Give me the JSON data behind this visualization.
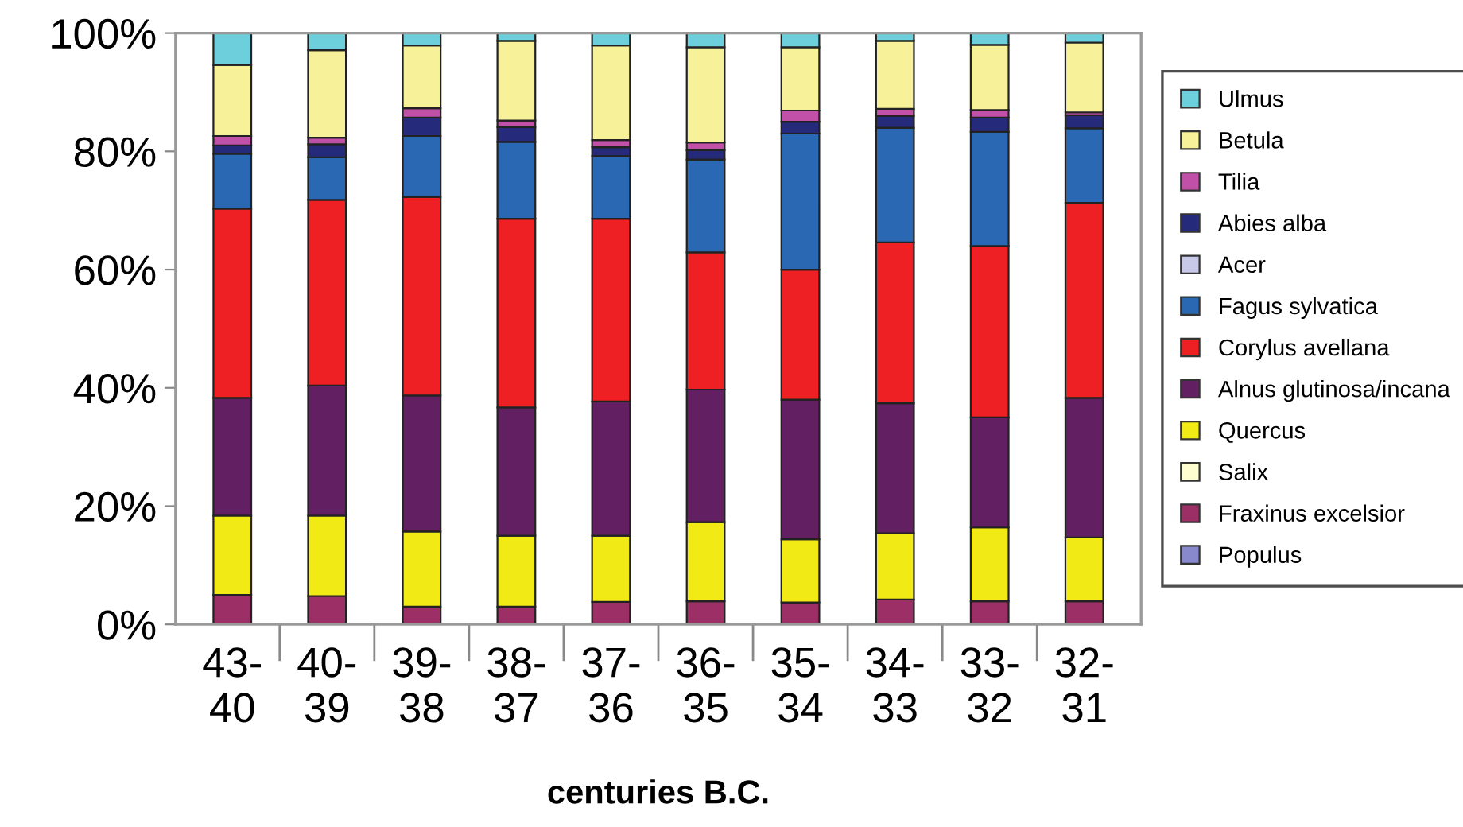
{
  "chart_data": {
    "type": "bar",
    "stacked": true,
    "xlabel": "centuries B.C.",
    "categories": [
      "43-\n40",
      "40-\n39",
      "39-\n38",
      "38-\n37",
      "37-\n36",
      "36-\n35",
      "35-\n34",
      "34-\n33",
      "33-\n32",
      "32-\n31"
    ],
    "ylim": [
      0,
      100
    ],
    "yticks": [
      {
        "value": 0,
        "label": "0%"
      },
      {
        "value": 20,
        "label": "20%"
      },
      {
        "value": 40,
        "label": "40%"
      },
      {
        "value": 60,
        "label": "60%"
      },
      {
        "value": 80,
        "label": "80%"
      },
      {
        "value": 100,
        "label": "100%"
      }
    ],
    "grid": false,
    "legend": "right",
    "series": [
      {
        "name": "Populus",
        "color": "#8888cc",
        "values": [
          null,
          null,
          null,
          null,
          null,
          null,
          null,
          null,
          null,
          null
        ]
      },
      {
        "name": "Fraxinus excelsior",
        "color": "#9c3066",
        "values": [
          5.0,
          4.8,
          3.0,
          3.0,
          3.8,
          3.9,
          3.7,
          4.2,
          3.9,
          3.9
        ]
      },
      {
        "name": "Salix",
        "color": "#fefed0",
        "values": [
          null,
          null,
          null,
          null,
          null,
          null,
          null,
          null,
          null,
          null
        ]
      },
      {
        "name": "Quercus",
        "color": "#f2ea14",
        "values": [
          13.4,
          13.6,
          12.7,
          12.0,
          11.2,
          13.4,
          10.7,
          11.2,
          12.5,
          10.8
        ]
      },
      {
        "name": "Alnus glutinosa/incana",
        "color": "#621f62",
        "values": [
          19.9,
          22.0,
          23.0,
          21.7,
          22.7,
          22.4,
          23.6,
          22.0,
          18.6,
          23.6
        ]
      },
      {
        "name": "Corylus avellana",
        "color": "#ee2024",
        "values": [
          32.0,
          31.4,
          33.6,
          31.9,
          30.9,
          23.2,
          22.0,
          27.2,
          29.0,
          33.0
        ]
      },
      {
        "name": "Fagus sylvatica",
        "color": "#2a68b4",
        "values": [
          9.3,
          7.2,
          10.3,
          13.0,
          10.6,
          15.7,
          23.0,
          19.4,
          19.3,
          12.6
        ]
      },
      {
        "name": "Acer",
        "color": "#c8c8e8",
        "values": [
          null,
          null,
          null,
          null,
          null,
          null,
          null,
          null,
          null,
          null
        ]
      },
      {
        "name": "Abies alba",
        "color": "#262a7a",
        "values": [
          1.4,
          2.2,
          3.1,
          2.5,
          1.5,
          1.6,
          2.0,
          2.0,
          2.4,
          2.2
        ]
      },
      {
        "name": "Tilia",
        "color": "#c050a8",
        "values": [
          1.6,
          1.1,
          1.6,
          1.1,
          1.2,
          1.3,
          1.9,
          1.2,
          1.3,
          0.5
        ]
      },
      {
        "name": "Betula",
        "color": "#f7f29a",
        "values": [
          12.0,
          14.8,
          10.6,
          13.5,
          16.0,
          16.1,
          10.7,
          11.5,
          11.0,
          11.8
        ]
      },
      {
        "name": "Ulmus",
        "color": "#6dcfdc",
        "values": [
          5.4,
          2.9,
          2.1,
          1.3,
          2.1,
          2.4,
          2.4,
          1.3,
          2.0,
          1.6
        ]
      }
    ]
  }
}
